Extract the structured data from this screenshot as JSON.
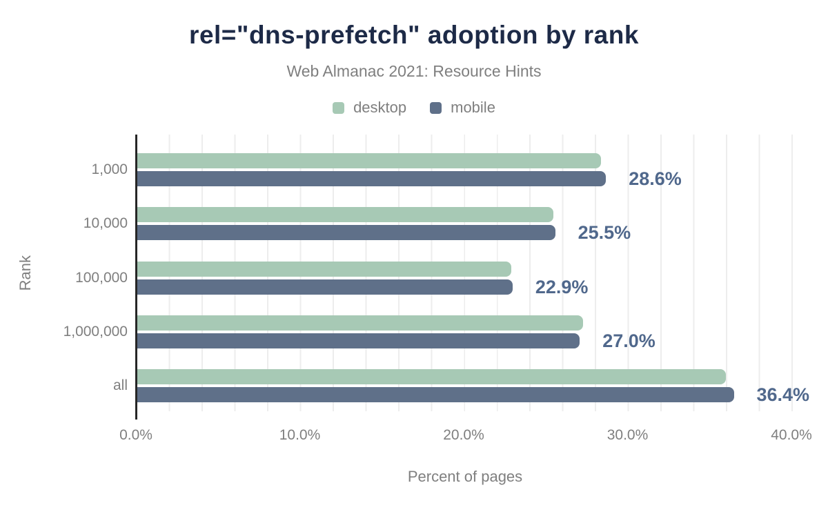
{
  "title": "rel=\"dns-prefetch\" adoption by rank",
  "subtitle": "Web Almanac 2021: Resource Hints",
  "legend": [
    {
      "label": "desktop",
      "color": "#a7c9b5"
    },
    {
      "label": "mobile",
      "color": "#5f7089"
    }
  ],
  "axes": {
    "x_label": "Percent of pages",
    "y_label": "Rank",
    "x_ticks": [
      "0.0%",
      "10.0%",
      "20.0%",
      "30.0%",
      "40.0%"
    ]
  },
  "chart_data": {
    "type": "bar",
    "orientation": "horizontal",
    "title": "rel=\"dns-prefetch\" adoption by rank",
    "subtitle": "Web Almanac 2021: Resource Hints",
    "xlabel": "Percent of pages",
    "ylabel": "Rank",
    "xlim": [
      0,
      40
    ],
    "grid": true,
    "gridline_step": 2,
    "legend_position": "top",
    "categories": [
      "1,000",
      "10,000",
      "100,000",
      "1,000,000",
      "all"
    ],
    "series": [
      {
        "name": "desktop",
        "values": [
          28.3,
          25.4,
          22.8,
          27.2,
          35.9
        ]
      },
      {
        "name": "mobile",
        "values": [
          28.6,
          25.5,
          22.9,
          27.0,
          36.4
        ]
      }
    ],
    "value_labels": [
      "28.6%",
      "25.5%",
      "22.9%",
      "27.0%",
      "36.4%"
    ],
    "value_labels_series": "mobile"
  },
  "colors": {
    "title": "#1d2a47",
    "muted_text": "#7f7f7f",
    "desktop": "#a7c9b5",
    "mobile": "#5f7089",
    "value_label": "#50688c",
    "axis_line": "#262626",
    "gridline": "#ededed"
  }
}
